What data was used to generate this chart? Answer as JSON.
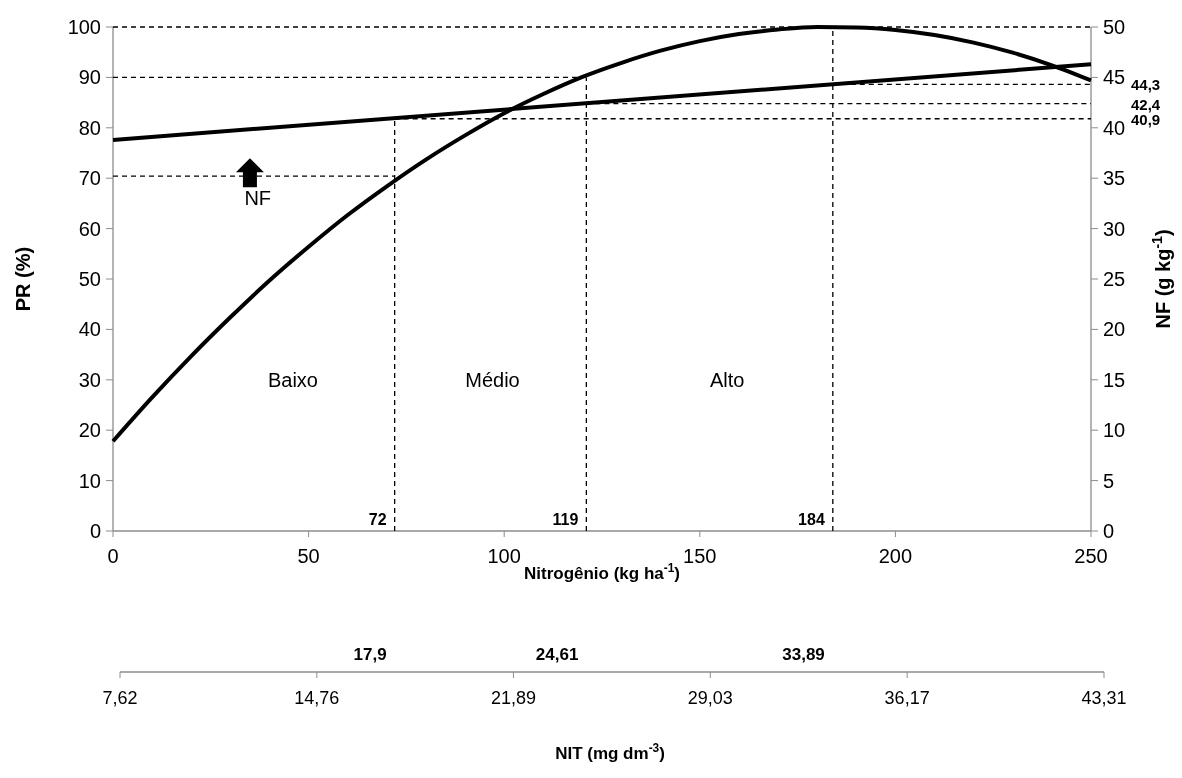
{
  "chart_data": {
    "type": "line",
    "xlabel": "Nitrogênio (kg ha$^{-1}$)",
    "ylabel": "PR (%)",
    "y2label": "NF (g kg$^{-1}$)",
    "x2label": "NIT (mg dm$^{-3}$)",
    "xlim": [
      0,
      250
    ],
    "xticks": [
      0,
      50,
      100,
      150,
      200,
      250
    ],
    "ylim": [
      0,
      100
    ],
    "yticks": [
      0,
      10,
      20,
      30,
      40,
      50,
      60,
      70,
      80,
      90,
      100
    ],
    "y2lim": [
      0,
      50
    ],
    "y2ticks": [
      0,
      5,
      10,
      15,
      20,
      25,
      30,
      35,
      40,
      45,
      50
    ],
    "x2lim": [
      7.62,
      43.31
    ],
    "x2ticks": [
      {
        "value": 7.62,
        "label": "7,62"
      },
      {
        "value": 14.76,
        "label": "14,76"
      },
      {
        "value": 21.89,
        "label": "21,89"
      },
      {
        "value": 29.03,
        "label": "29,03"
      },
      {
        "value": 36.17,
        "label": "36,17"
      },
      {
        "value": 43.31,
        "label": "43,31"
      }
    ],
    "grid": false,
    "marker": "none",
    "series": [
      {
        "color": "#000000",
        "line_style": "solid",
        "x": [
          0,
          10,
          20,
          30,
          40,
          50,
          60,
          70,
          80,
          90,
          100,
          110,
          120,
          130,
          140,
          150,
          160,
          170,
          180,
          190,
          200,
          210,
          220,
          230,
          240,
          250
        ],
        "values": [
          17.8,
          26.5,
          34.7,
          42.4,
          49.7,
          56.4,
          62.7,
          68.4,
          73.7,
          78.5,
          82.9,
          86.7,
          90.1,
          92.9,
          95.3,
          97.2,
          98.6,
          99.5,
          100,
          99.9,
          99.4,
          98.4,
          96.9,
          94.9,
          92.4,
          89.4
        ]
      },
      {
        "color": "#000000",
        "line_style": "solid",
        "axis": "y2",
        "x": [
          0,
          250
        ],
        "values": [
          38.8,
          46.3
        ]
      },
      {
        "color": "#000000",
        "line_style": "dashed",
        "x": [
          0,
          250
        ],
        "values": [
          100,
          100
        ]
      },
      {
        "color": "#000000",
        "line_style": "dashed",
        "x": [
          0,
          121
        ],
        "values": [
          90,
          90
        ]
      },
      {
        "color": "#000000",
        "line_style": "dashed",
        "x": [
          0,
          72
        ],
        "values": [
          70.4,
          70.4
        ]
      },
      {
        "color": "#000000",
        "line_style": "dashed",
        "x": [
          72,
          72
        ],
        "values": [
          0,
          81.8
        ]
      },
      {
        "color": "#000000",
        "line_style": "dashed",
        "x": [
          121,
          121
        ],
        "values": [
          0,
          90
        ]
      },
      {
        "color": "#000000",
        "line_style": "dashed",
        "x": [
          184,
          184
        ],
        "values": [
          0,
          100
        ]
      },
      {
        "color": "#000000",
        "line_style": "dashed",
        "axis": "y2",
        "x": [
          72,
          250
        ],
        "values": [
          40.9,
          40.9
        ]
      },
      {
        "color": "#000000",
        "line_style": "dashed",
        "axis": "y2",
        "x": [
          121,
          250
        ],
        "values": [
          42.4,
          42.4
        ]
      },
      {
        "color": "#000000",
        "line_style": "dashed",
        "axis": "y2",
        "x": [
          184,
          250
        ],
        "values": [
          44.3,
          44.3
        ]
      }
    ],
    "annotations": [
      "NF",
      "Baixo",
      "Médio",
      "Alto",
      {
        "text": "72",
        "x": 72,
        "y": 0
      },
      {
        "text": "119",
        "x": 121,
        "y": 0
      },
      {
        "text": "184",
        "x": 184,
        "y": 0
      },
      {
        "text": "44,3",
        "x": 250,
        "y": 88.6
      },
      {
        "text": "42,4",
        "x": 250,
        "y": 84.8
      },
      {
        "text": "40,9",
        "x": 250,
        "y": 81.8
      },
      "17,9",
      "24,61",
      "33,89"
    ]
  }
}
